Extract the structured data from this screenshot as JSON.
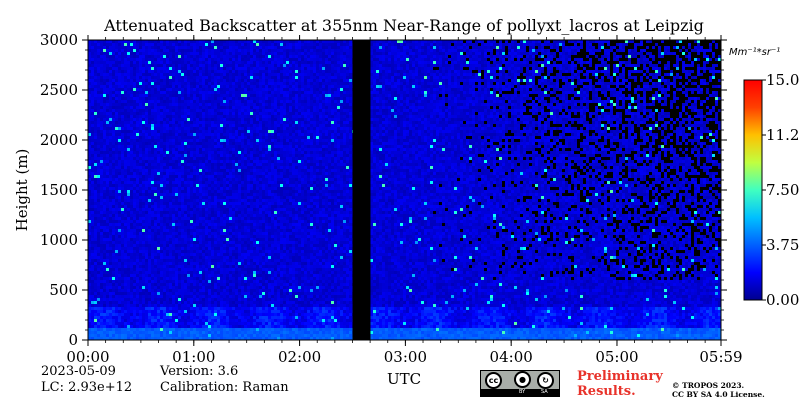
{
  "chart_data": {
    "type": "heatmap",
    "title": "Attenuated Backscatter at 355nm Near-Range of pollyxt_lacros at Leipzig",
    "xlabel": "UTC",
    "ylabel": "Height (m)",
    "x_ticks": [
      "00:00",
      "01:00",
      "02:00",
      "03:00",
      "04:00",
      "05:00",
      "05:59"
    ],
    "x_tick_hours": [
      0,
      1,
      2,
      3,
      4,
      5,
      5.9833
    ],
    "xlim_hours": [
      0,
      5.9833
    ],
    "y_ticks": [
      0,
      500,
      1000,
      1500,
      2000,
      2500,
      3000
    ],
    "ylim": [
      0,
      3000
    ],
    "colorbar": {
      "unit": "Mm⁻¹*sr⁻¹",
      "ticks": [
        "0.00",
        "3.75",
        "7.50",
        "11.2",
        "15.0"
      ],
      "tick_values": [
        0,
        3.75,
        7.5,
        11.25,
        15
      ],
      "range": [
        0,
        15
      ],
      "colormap": [
        "#00008f",
        "#0000ff",
        "#0080ff",
        "#00ffff",
        "#80ff80",
        "#ffff00",
        "#ff8000",
        "#ff0000",
        "#800000"
      ]
    },
    "data_gap_hours": [
      2.5,
      2.67
    ],
    "profile": {
      "strong_layer_height_m": [
        0,
        120
      ],
      "strong_layer_value": 3.2,
      "boundary_layer_top_m": 350,
      "bulk_value": 1.2,
      "noise_onset_hour": 3.2
    }
  },
  "info": {
    "date": "2023-05-09",
    "lc": "LC: 2.93e+12",
    "version": "Version: 3.6",
    "calibration": "Calibration: Raman"
  },
  "license": {
    "preliminary_line1": "Preliminary",
    "preliminary_line2": "Results.",
    "copyright_line1": "© TROPOS 2023.",
    "copyright_line2": "CC BY SA 4.0 License.",
    "badge_by": "BY",
    "badge_sa": "SA"
  },
  "colors": {
    "background": "#ffffff",
    "gap": "#000000",
    "preliminary": "#e8322a"
  }
}
